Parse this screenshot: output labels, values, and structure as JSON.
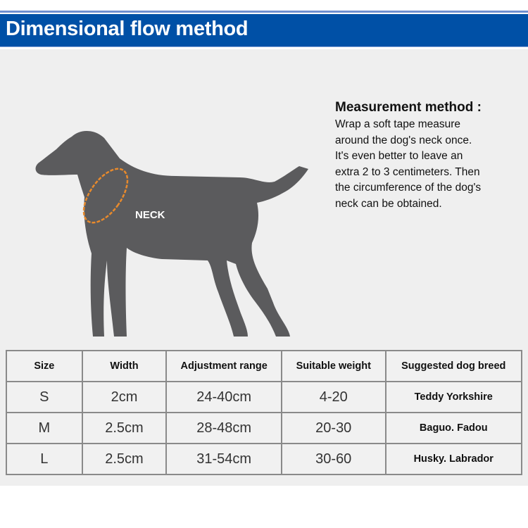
{
  "header": {
    "title": "Dimensional flow method"
  },
  "diagram": {
    "neck_label": "NECK",
    "measure_color": "#e88a2c",
    "dog_color": "#5b5b5d"
  },
  "method": {
    "title": "Measurement method :",
    "lines": [
      "Wrap a soft tape measure",
      "around the dog's neck once.",
      "It's even better to leave an",
      "extra 2 to 3 centimeters. Then",
      "the circumference of the dog's",
      "neck can be obtained."
    ]
  },
  "table": {
    "headers": [
      "Size",
      "Width",
      "Adjustment range",
      "Suitable weight",
      "Suggested dog breed"
    ],
    "rows": [
      [
        "S",
        "2cm",
        "24-40cm",
        "4-20",
        "Teddy Yorkshire"
      ],
      [
        "M",
        "2.5cm",
        "28-48cm",
        "20-30",
        "Baguo. Fadou"
      ],
      [
        "L",
        "2.5cm",
        "31-54cm",
        "30-60",
        "Husky. Labrador"
      ]
    ]
  }
}
